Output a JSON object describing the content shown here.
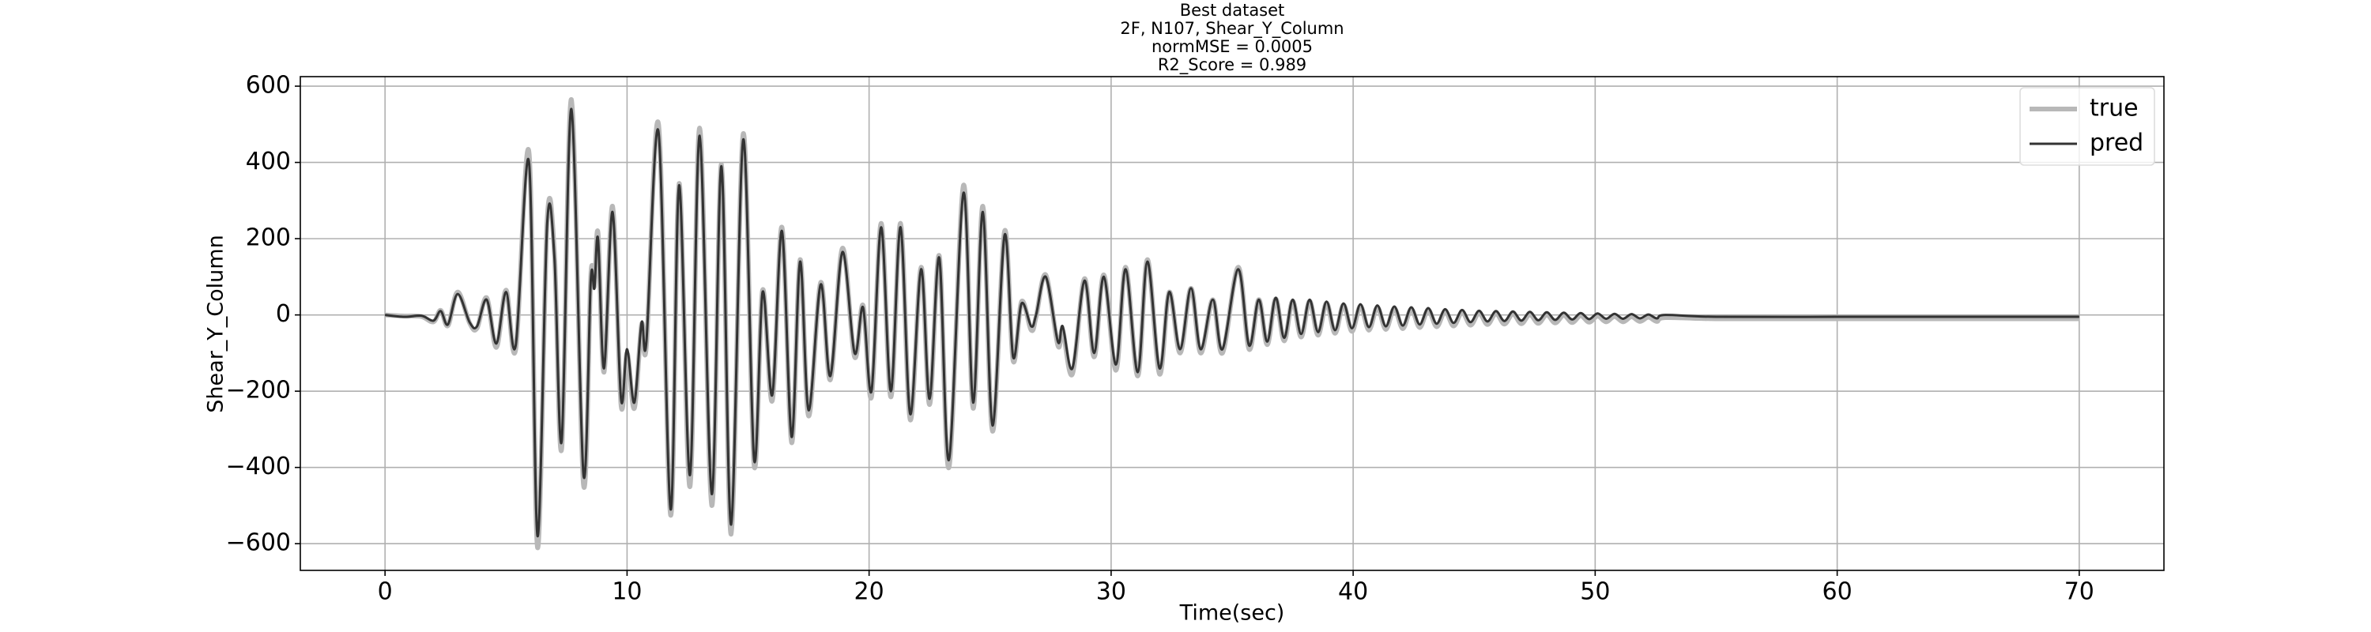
{
  "chart_data": {
    "type": "line",
    "title": [
      "Best dataset",
      "2F, N107, Shear_Y_Column",
      "normMSE = 0.0005",
      "R2_Score = 0.989"
    ],
    "xlabel": "Time(sec)",
    "ylabel": "Shear_Y_Column",
    "x": [
      0,
      0.8,
      1.5,
      2.0,
      2.3,
      2.6,
      3.0,
      3.5,
      3.8,
      4.2,
      4.6,
      5.0,
      5.4,
      5.95,
      6.3,
      6.7,
      7.0,
      7.3,
      7.7,
      8.2,
      8.5,
      8.65,
      8.8,
      9.05,
      9.4,
      9.75,
      10.0,
      10.3,
      10.6,
      10.8,
      11.3,
      11.8,
      12.15,
      12.6,
      13.0,
      13.5,
      13.9,
      14.3,
      14.8,
      15.25,
      15.6,
      16.0,
      16.4,
      16.8,
      17.15,
      17.5,
      18.0,
      18.4,
      18.9,
      19.4,
      19.75,
      20.1,
      20.5,
      20.9,
      21.3,
      21.7,
      22.15,
      22.5,
      22.9,
      23.3,
      23.9,
      24.3,
      24.7,
      25.1,
      25.6,
      25.95,
      26.3,
      26.7,
      26.9,
      27.3,
      27.8,
      28.0,
      28.4,
      28.9,
      29.3,
      29.7,
      30.2,
      30.6,
      31.1,
      31.5,
      32.0,
      32.4,
      32.85,
      33.3,
      33.7,
      34.2,
      34.6,
      35.25,
      35.7,
      36.1,
      36.45,
      36.8,
      37.15,
      37.5,
      37.85,
      38.2,
      38.55,
      38.9,
      39.25,
      39.6,
      39.95,
      40.3,
      40.65,
      41.0,
      41.35,
      41.7,
      42.05,
      42.4,
      42.75,
      43.1,
      43.45,
      43.8,
      44.15,
      44.5,
      44.85,
      45.2,
      45.55,
      45.9,
      46.25,
      46.6,
      46.95,
      47.3,
      47.65,
      48.0,
      48.35,
      48.7,
      49.05,
      49.4,
      49.75,
      50.1,
      50.45,
      50.8,
      51.15,
      51.5,
      51.85,
      52.2,
      52.55,
      52.9,
      55,
      60,
      65,
      70
    ],
    "series": [
      {
        "name": "true",
        "color": "#b8b8b8",
        "width": 6,
        "values": [
          0,
          -3,
          -4,
          -18,
          12,
          -28,
          60,
          -22,
          -35,
          45,
          -85,
          65,
          -90,
          425,
          -610,
          250,
          160,
          -350,
          565,
          -445,
          100,
          75,
          215,
          -150,
          285,
          -235,
          -100,
          -245,
          -25,
          -80,
          500,
          -525,
          345,
          -450,
          490,
          -500,
          395,
          -575,
          475,
          -395,
          65,
          -225,
          230,
          -335,
          145,
          -265,
          85,
          -170,
          175,
          -110,
          25,
          -215,
          240,
          -215,
          240,
          -275,
          125,
          -235,
          155,
          -400,
          340,
          -245,
          285,
          -305,
          220,
          -120,
          35,
          -40,
          -5,
          105,
          -80,
          -40,
          -155,
          95,
          -110,
          105,
          -145,
          125,
          -160,
          145,
          -155,
          60,
          -100,
          70,
          -100,
          40,
          -100,
          125,
          -90,
          40,
          -78,
          42,
          -68,
          36,
          -58,
          36,
          -53,
          31,
          -48,
          26,
          -43,
          23,
          -40,
          20,
          -38,
          17,
          -36,
          15,
          -33,
          13,
          -31,
          9,
          -29,
          7,
          -27,
          5,
          -25,
          4,
          -24,
          3,
          -23,
          1,
          -22,
          0,
          -21,
          -1,
          -20,
          -2,
          -19,
          -3,
          -18,
          -4,
          -18,
          -5,
          -17,
          -6,
          -17,
          -7,
          -10,
          -10,
          -10,
          -10
        ]
      },
      {
        "name": "pred",
        "color": "#333333",
        "width": 3,
        "values": [
          0,
          -5,
          -2,
          -15,
          10,
          -25,
          55,
          -20,
          -30,
          40,
          -75,
          60,
          -80,
          400,
          -580,
          240,
          150,
          -330,
          540,
          -420,
          90,
          70,
          200,
          -140,
          270,
          -220,
          -90,
          -230,
          -20,
          -70,
          480,
          -510,
          340,
          -420,
          470,
          -470,
          390,
          -550,
          460,
          -380,
          60,
          -210,
          220,
          -320,
          140,
          -250,
          80,
          -160,
          165,
          -100,
          20,
          -200,
          230,
          -200,
          230,
          -260,
          120,
          -220,
          150,
          -380,
          320,
          -230,
          270,
          -290,
          210,
          -110,
          30,
          -30,
          0,
          100,
          -70,
          -30,
          -140,
          90,
          -100,
          100,
          -130,
          120,
          -150,
          140,
          -140,
          60,
          -90,
          70,
          -90,
          40,
          -90,
          120,
          -80,
          40,
          -70,
          45,
          -60,
          40,
          -50,
          40,
          -45,
          35,
          -40,
          30,
          -35,
          28,
          -32,
          25,
          -30,
          22,
          -28,
          20,
          -25,
          18,
          -23,
          15,
          -21,
          13,
          -19,
          11,
          -17,
          10,
          -16,
          9,
          -15,
          8,
          -14,
          7,
          -13,
          6,
          -12,
          5,
          -11,
          4,
          -10,
          3,
          -10,
          2,
          -9,
          1,
          -9,
          0,
          -5,
          -5,
          -5,
          -5
        ]
      }
    ],
    "xlim": [
      -3.5,
      73.5
    ],
    "ylim": [
      -670,
      625
    ],
    "xticks": [
      0,
      10,
      20,
      30,
      40,
      50,
      60,
      70
    ],
    "yticks": [
      {
        "value": -600,
        "label": "−600"
      },
      {
        "value": -400,
        "label": "−400"
      },
      {
        "value": -200,
        "label": "−200"
      },
      0,
      200,
      400,
      600
    ],
    "grid": true,
    "legend": "upper right"
  }
}
